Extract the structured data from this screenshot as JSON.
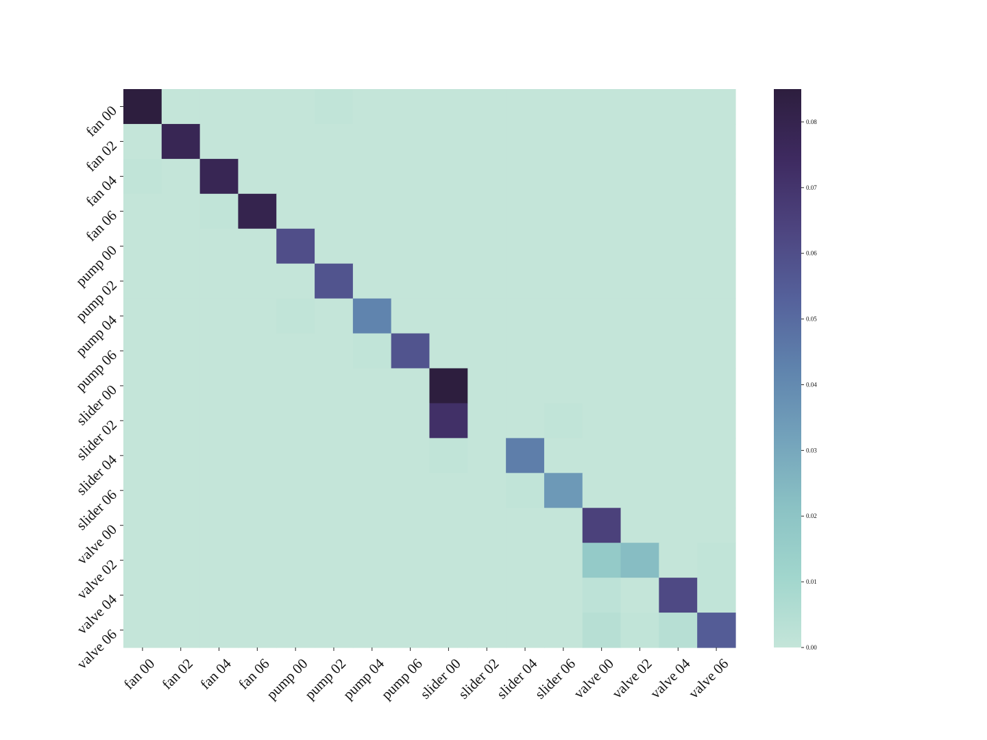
{
  "chart_data": {
    "type": "heatmap",
    "x_labels": [
      "fan 00",
      "fan 02",
      "fan 04",
      "fan 06",
      "pump 00",
      "pump 02",
      "pump 04",
      "pump 06",
      "slider 00",
      "slider 02",
      "slider 04",
      "slider 06",
      "valve 00",
      "valve 02",
      "valve 04",
      "valve 06"
    ],
    "y_labels": [
      "fan 00",
      "fan 02",
      "fan 04",
      "fan 06",
      "pump 00",
      "pump 02",
      "pump 04",
      "pump 06",
      "slider 00",
      "slider 02",
      "slider 04",
      "slider 06",
      "valve 00",
      "valve 02",
      "valve 04",
      "valve 06"
    ],
    "values": [
      [
        0.085,
        0,
        0,
        0,
        0,
        0.001,
        0,
        0,
        0,
        0,
        0,
        0,
        0,
        0,
        0,
        0
      ],
      [
        0,
        0.078,
        0,
        0,
        0,
        0,
        0,
        0,
        0,
        0,
        0,
        0,
        0,
        0,
        0,
        0
      ],
      [
        0.001,
        0,
        0.078,
        0,
        0,
        0,
        0,
        0,
        0,
        0,
        0,
        0,
        0,
        0,
        0,
        0
      ],
      [
        0,
        0,
        0.001,
        0.08,
        0,
        0,
        0,
        0,
        0,
        0,
        0,
        0,
        0,
        0,
        0,
        0
      ],
      [
        0,
        0,
        0,
        0,
        0.06,
        0,
        0,
        0,
        0,
        0,
        0,
        0,
        0,
        0,
        0,
        0
      ],
      [
        0,
        0,
        0,
        0,
        0,
        0.058,
        0,
        0,
        0,
        0,
        0,
        0,
        0,
        0,
        0,
        0
      ],
      [
        0,
        0,
        0,
        0,
        0.001,
        0,
        0.042,
        0,
        0,
        0,
        0,
        0,
        0,
        0,
        0,
        0
      ],
      [
        0,
        0,
        0,
        0,
        0,
        0,
        0.001,
        0.058,
        0,
        0,
        0,
        0,
        0,
        0,
        0,
        0
      ],
      [
        0,
        0,
        0,
        0,
        0,
        0,
        0,
        0,
        0.085,
        0,
        0,
        0,
        0,
        0,
        0,
        0
      ],
      [
        0,
        0,
        0,
        0,
        0,
        0,
        0,
        0,
        0.072,
        0,
        0,
        0.001,
        0,
        0,
        0,
        0
      ],
      [
        0,
        0,
        0,
        0,
        0,
        0,
        0,
        0,
        0.001,
        0,
        0.044,
        0,
        0,
        0,
        0,
        0
      ],
      [
        0,
        0,
        0,
        0,
        0,
        0,
        0,
        0,
        0,
        0,
        0.001,
        0.035,
        0,
        0,
        0,
        0
      ],
      [
        0,
        0,
        0,
        0,
        0,
        0,
        0,
        0,
        0,
        0,
        0,
        0,
        0.065,
        0,
        0,
        0
      ],
      [
        0,
        0,
        0,
        0,
        0,
        0,
        0,
        0,
        0,
        0,
        0,
        0,
        0.017,
        0.023,
        0,
        0.001
      ],
      [
        0,
        0,
        0,
        0,
        0,
        0,
        0,
        0,
        0,
        0,
        0,
        0,
        0.002,
        0,
        0.062,
        0.001
      ],
      [
        0,
        0,
        0,
        0,
        0,
        0,
        0,
        0,
        0,
        0,
        0,
        0,
        0.004,
        0.001,
        0.004,
        0.055
      ]
    ],
    "colorbar": {
      "ticks": [
        "0.00",
        "0.01",
        "0.02",
        "0.03",
        "0.04",
        "0.05",
        "0.06",
        "0.07",
        "0.08"
      ],
      "range": [
        0,
        0.085
      ],
      "colors": [
        "#c4e5d9",
        "#a1d6cd",
        "#8bc2c4",
        "#73a2bb",
        "#5f83ad",
        "#55619b",
        "#4d447f",
        "#3e2a60",
        "#2d1e3e"
      ]
    },
    "title": "",
    "xlabel": "",
    "ylabel": "",
    "grid": false,
    "legend": "colorbar right"
  }
}
